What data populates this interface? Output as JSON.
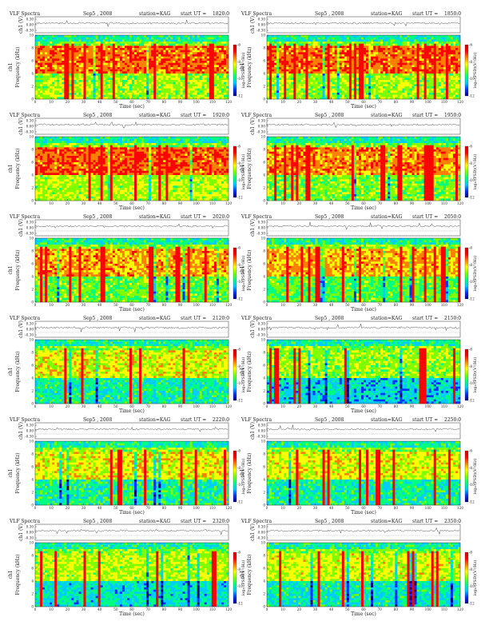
{
  "colors": {
    "background": "#ffffff",
    "ink": "#222222",
    "spectrogram_scale": [
      "#000080",
      "#0033ff",
      "#00ccff",
      "#00ff80",
      "#80ff00",
      "#ffff00",
      "#ff8000",
      "#ff0000",
      "#cc0000"
    ]
  },
  "labels": {
    "title_prefix": "VLF Spectra",
    "date": "Sep5 , 2008",
    "station": "station=KAG",
    "start_prefix": "start  UT  =",
    "ch_axis": "ch1 (V)",
    "ch_block": "ch1",
    "freq_axis": "Frequency  (kHz)",
    "time_axis": "Time  (sec)",
    "colorbar": "log₁₀(PSD)(V²/Hz)"
  },
  "chart_data": [
    {
      "type": "heatmap",
      "start_ut": "1820:0",
      "intensity": 0.78
    },
    {
      "type": "heatmap",
      "start_ut": "1850:0",
      "intensity": 0.78
    },
    {
      "type": "heatmap",
      "start_ut": "1920:0",
      "intensity": 0.8
    },
    {
      "type": "heatmap",
      "start_ut": "1950:0",
      "intensity": 0.74
    },
    {
      "type": "heatmap",
      "start_ut": "2020:0",
      "intensity": 0.72
    },
    {
      "type": "heatmap",
      "start_ut": "2050:0",
      "intensity": 0.7
    },
    {
      "type": "heatmap",
      "start_ut": "2120:0",
      "intensity": 0.6
    },
    {
      "type": "heatmap",
      "start_ut": "2150:0",
      "intensity": 0.52
    },
    {
      "type": "heatmap",
      "start_ut": "2220:0",
      "intensity": 0.62
    },
    {
      "type": "heatmap",
      "start_ut": "2250:0",
      "intensity": 0.6
    },
    {
      "type": "heatmap",
      "start_ut": "2320:0",
      "intensity": 0.55
    },
    {
      "type": "heatmap",
      "start_ut": "2350:0",
      "intensity": 0.58
    }
  ],
  "axes": {
    "waveform_ticks": [
      "0.30",
      "0.00",
      "-0.30"
    ],
    "waveform_range": [
      -0.3,
      0.3
    ],
    "freq_ticks": [
      "10",
      "8",
      "6",
      "4",
      "2",
      "0"
    ],
    "freq_range": [
      0,
      10
    ],
    "time_ticks": [
      "0",
      "10",
      "20",
      "30",
      "40",
      "50",
      "60",
      "70",
      "80",
      "90",
      "100",
      "110",
      "120"
    ],
    "time_range": [
      0,
      120
    ],
    "colorbar_ticks": [
      "-6",
      "-8",
      "-10",
      "-12"
    ]
  }
}
